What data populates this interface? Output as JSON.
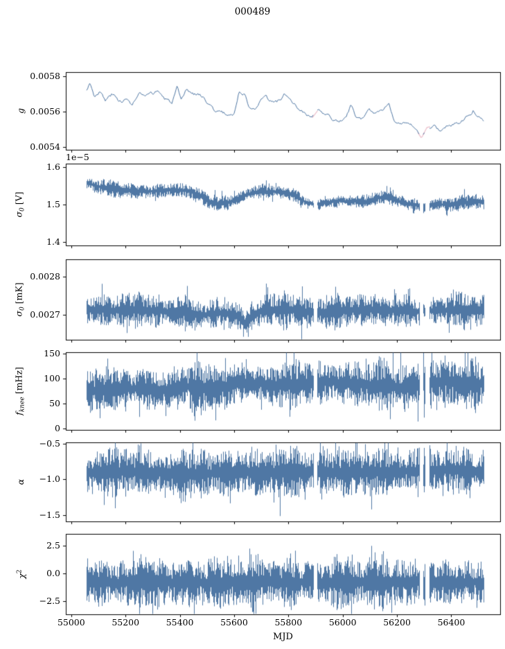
{
  "chart_data": {
    "type": "line",
    "title": "000489",
    "xlabel": "MJD",
    "line_color": "#4f77a4",
    "masked_color": "#edc2cd",
    "axis_color": "#000000",
    "xlim": [
      54980,
      56580
    ],
    "xticks": [
      55000,
      55200,
      55400,
      55600,
      55800,
      56000,
      56200,
      56400
    ],
    "xtick_labels": [
      "55000",
      "55200",
      "55400",
      "55600",
      "55800",
      "56000",
      "56200",
      "56400"
    ],
    "x_data_range": [
      55055,
      56520
    ],
    "gaps": [
      [
        55893,
        55904
      ],
      [
        56282,
        56296
      ],
      [
        56304,
        56318
      ]
    ],
    "grid": false,
    "legend": "none",
    "panels": [
      {
        "ylabel": "g",
        "ylabel_parts": {
          "main": "g",
          "unit": ""
        },
        "style": "line",
        "ylim": [
          0.005384,
          0.005824
        ],
        "yticks": [
          0.0054,
          0.0056,
          0.0058
        ],
        "ytick_labels": [
          "0.0054",
          "0.0056",
          "0.0058"
        ],
        "noise": 1.5e-05,
        "seed": 3,
        "trend": [
          [
            55055,
            0.00571
          ],
          [
            55068,
            0.00577
          ],
          [
            55085,
            0.00569
          ],
          [
            55105,
            0.00572
          ],
          [
            55125,
            0.00566
          ],
          [
            55150,
            0.0057
          ],
          [
            55175,
            0.00566
          ],
          [
            55200,
            0.00567
          ],
          [
            55225,
            0.00564
          ],
          [
            55250,
            0.0057
          ],
          [
            55275,
            0.00568
          ],
          [
            55300,
            0.0057
          ],
          [
            55320,
            0.00572
          ],
          [
            55345,
            0.00567
          ],
          [
            55370,
            0.00565
          ],
          [
            55390,
            0.00573
          ],
          [
            55405,
            0.00565
          ],
          [
            55425,
            0.00572
          ],
          [
            55450,
            0.0057
          ],
          [
            55475,
            0.0057
          ],
          [
            55500,
            0.00566
          ],
          [
            55525,
            0.00561
          ],
          [
            55550,
            0.0056
          ],
          [
            55575,
            0.00558
          ],
          [
            55600,
            0.00559
          ],
          [
            55620,
            0.00572
          ],
          [
            55638,
            0.0057
          ],
          [
            55655,
            0.00563
          ],
          [
            55680,
            0.00563
          ],
          [
            55700,
            0.00566
          ],
          [
            55715,
            0.0057
          ],
          [
            55735,
            0.00566
          ],
          [
            55760,
            0.00566
          ],
          [
            55785,
            0.0057
          ],
          [
            55810,
            0.00565
          ],
          [
            55835,
            0.00562
          ],
          [
            55860,
            0.00559
          ],
          [
            55885,
            0.00556
          ],
          [
            55910,
            0.00561
          ],
          [
            55935,
            0.00558
          ],
          [
            55960,
            0.00556
          ],
          [
            55985,
            0.00554
          ],
          [
            56010,
            0.00556
          ],
          [
            56030,
            0.00563
          ],
          [
            56050,
            0.00557
          ],
          [
            56075,
            0.00556
          ],
          [
            56100,
            0.0056
          ],
          [
            56125,
            0.00559
          ],
          [
            56150,
            0.00562
          ],
          [
            56170,
            0.00565
          ],
          [
            56190,
            0.00556
          ],
          [
            56215,
            0.00553
          ],
          [
            56240,
            0.00552
          ],
          [
            56265,
            0.00551
          ],
          [
            56290,
            0.00545
          ],
          [
            56310,
            0.00551
          ],
          [
            56335,
            0.00552
          ],
          [
            56360,
            0.00549
          ],
          [
            56385,
            0.00552
          ],
          [
            56410,
            0.00553
          ],
          [
            56435,
            0.00555
          ],
          [
            56460,
            0.00558
          ],
          [
            56480,
            0.00561
          ],
          [
            56500,
            0.00558
          ],
          [
            56520,
            0.00556
          ]
        ]
      },
      {
        "ylabel": "σ₀ [V]",
        "ylabel_parts": {
          "main": "σ",
          "sub": "0",
          "unit": " [V]"
        },
        "style": "band",
        "ylim": [
          1.39e-05,
          1.61e-05
        ],
        "yticks": [
          1.4e-05,
          1.5e-05,
          1.6e-05
        ],
        "ytick_labels": [
          "1.4",
          "1.5",
          "1.6"
        ],
        "offset_text": "1e−5",
        "noise": 1.3e-07,
        "seed": 7,
        "trend": [
          [
            55055,
            1.56e-05
          ],
          [
            55090,
            1.55e-05
          ],
          [
            55130,
            1.545e-05
          ],
          [
            55180,
            1.54e-05
          ],
          [
            55230,
            1.537e-05
          ],
          [
            55280,
            1.535e-05
          ],
          [
            55330,
            1.538e-05
          ],
          [
            55380,
            1.54e-05
          ],
          [
            55430,
            1.537e-05
          ],
          [
            55470,
            1.525e-05
          ],
          [
            55505,
            1.507e-05
          ],
          [
            55540,
            1.502e-05
          ],
          [
            55575,
            1.505e-05
          ],
          [
            55610,
            1.515e-05
          ],
          [
            55645,
            1.528e-05
          ],
          [
            55690,
            1.534e-05
          ],
          [
            55740,
            1.535e-05
          ],
          [
            55790,
            1.532e-05
          ],
          [
            55825,
            1.523e-05
          ],
          [
            55860,
            1.508e-05
          ],
          [
            55900,
            1.5e-05
          ],
          [
            55945,
            1.505e-05
          ],
          [
            55990,
            1.51e-05
          ],
          [
            56040,
            1.508e-05
          ],
          [
            56090,
            1.509e-05
          ],
          [
            56140,
            1.519e-05
          ],
          [
            56180,
            1.515e-05
          ],
          [
            56225,
            1.505e-05
          ],
          [
            56265,
            1.5e-05
          ],
          [
            56300,
            1.492e-05
          ],
          [
            56340,
            1.5e-05
          ],
          [
            56390,
            1.5e-05
          ],
          [
            56440,
            1.506e-05
          ],
          [
            56490,
            1.508e-05
          ],
          [
            56520,
            1.505e-05
          ]
        ]
      },
      {
        "ylabel": "σ₀ [mK]",
        "ylabel_parts": {
          "main": "σ",
          "sub": "0",
          "unit": " [mK]"
        },
        "style": "band",
        "ylim": [
          0.002635,
          0.002845
        ],
        "yticks": [
          0.0027,
          0.0028
        ],
        "ytick_labels": [
          "0.0027",
          "0.0028"
        ],
        "noise": 3e-05,
        "seed": 13,
        "trend": [
          [
            55055,
            0.002715
          ],
          [
            55150,
            0.002712
          ],
          [
            55250,
            0.002714
          ],
          [
            55350,
            0.00271
          ],
          [
            55430,
            0.002706
          ],
          [
            55480,
            0.002699
          ],
          [
            55540,
            0.002706
          ],
          [
            55610,
            0.002698
          ],
          [
            55640,
            0.002672
          ],
          [
            55665,
            0.0027
          ],
          [
            55720,
            0.002713
          ],
          [
            55800,
            0.002714
          ],
          [
            55880,
            0.00271
          ],
          [
            55950,
            0.002707
          ],
          [
            56030,
            0.002712
          ],
          [
            56120,
            0.002714
          ],
          [
            56200,
            0.002711
          ],
          [
            56280,
            0.002709
          ],
          [
            56360,
            0.002712
          ],
          [
            56440,
            0.002713
          ],
          [
            56520,
            0.002712
          ]
        ]
      },
      {
        "ylabel": "fₖₙₑₑ [mHz]",
        "ylabel_parts": {
          "main": "f",
          "sub": "knee",
          "unit": " [mHz]"
        },
        "style": "band",
        "ylim": [
          -3,
          153
        ],
        "yticks": [
          0,
          50,
          100,
          150
        ],
        "ytick_labels": [
          "0",
          "50",
          "100",
          "150"
        ],
        "noise": 30,
        "seed": 21,
        "trend": [
          [
            55055,
            74
          ],
          [
            55150,
            78
          ],
          [
            55250,
            81
          ],
          [
            55330,
            76
          ],
          [
            55420,
            86
          ],
          [
            55480,
            79
          ],
          [
            55560,
            84
          ],
          [
            55630,
            93
          ],
          [
            55700,
            89
          ],
          [
            55780,
            86
          ],
          [
            55860,
            90
          ],
          [
            55950,
            94
          ],
          [
            56040,
            90
          ],
          [
            56130,
            86
          ],
          [
            56220,
            82
          ],
          [
            56300,
            93
          ],
          [
            56380,
            95
          ],
          [
            56460,
            91
          ],
          [
            56520,
            89
          ]
        ]
      },
      {
        "ylabel": "α",
        "ylabel_parts": {
          "main": "α",
          "unit": ""
        },
        "style": "band",
        "ylim": [
          -1.59,
          -0.48
        ],
        "yticks": [
          -1.5,
          -1.0,
          -0.5
        ],
        "ytick_labels": [
          "−1.5",
          "−1.0",
          "−0.5"
        ],
        "noise": 0.22,
        "seed": 29,
        "trend": [
          [
            55055,
            -0.9
          ],
          [
            55250,
            -0.89
          ],
          [
            55450,
            -0.92
          ],
          [
            55650,
            -0.9
          ],
          [
            55850,
            -0.89
          ],
          [
            56050,
            -0.9
          ],
          [
            56250,
            -0.88
          ],
          [
            56400,
            -0.87
          ],
          [
            56520,
            -0.88
          ]
        ]
      },
      {
        "ylabel": "χ²",
        "ylabel_parts": {
          "main": "χ",
          "sup": "2",
          "unit": ""
        },
        "style": "band",
        "ylim": [
          -3.7,
          3.6
        ],
        "yticks": [
          -2.5,
          0.0,
          2.5
        ],
        "ytick_labels": [
          "−2.5",
          "0.0",
          "2.5"
        ],
        "noise": 1.55,
        "seed": 41,
        "trend": [
          [
            55055,
            -0.8
          ],
          [
            55400,
            -0.82
          ],
          [
            55800,
            -0.78
          ],
          [
            56200,
            -0.8
          ],
          [
            56520,
            -0.78
          ]
        ]
      }
    ]
  }
}
